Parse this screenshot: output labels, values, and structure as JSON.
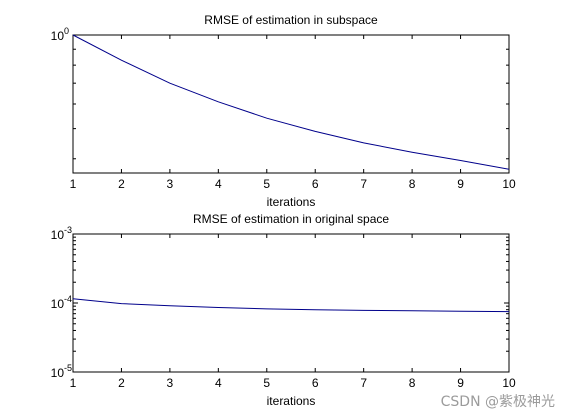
{
  "chart_data": [
    {
      "type": "line",
      "title": "RMSE of estimation in subspace",
      "xlabel": "iterations",
      "ylabel": "",
      "xlim": [
        1,
        10
      ],
      "x": [
        1,
        2,
        3,
        4,
        5,
        6,
        7,
        8,
        9,
        10
      ],
      "xticks": [
        "1",
        "2",
        "3",
        "4",
        "5",
        "6",
        "7",
        "8",
        "9",
        "10"
      ],
      "yscale": "log",
      "ylim": [
        0.36,
        1.0
      ],
      "ytick_labels": [
        {
          "base": "10",
          "exp": "0",
          "value": 1
        }
      ],
      "series": [
        {
          "color": "#00008b",
          "values": [
            1.0,
            0.83,
            0.7,
            0.61,
            0.54,
            0.49,
            0.45,
            0.42,
            0.395,
            0.37
          ]
        }
      ],
      "grid": false,
      "legend": "none"
    },
    {
      "type": "line",
      "title": "RMSE of estimation in original space",
      "xlabel": "iterations",
      "ylabel": "",
      "xlim": [
        1,
        10
      ],
      "x": [
        1,
        2,
        3,
        4,
        5,
        6,
        7,
        8,
        9,
        10
      ],
      "xticks": [
        "1",
        "2",
        "3",
        "4",
        "5",
        "6",
        "7",
        "8",
        "9",
        "10"
      ],
      "yscale": "log",
      "ylim": [
        1e-05,
        0.001
      ],
      "ytick_labels": [
        {
          "base": "10",
          "exp": "-3",
          "value": 0.001
        },
        {
          "base": "10",
          "exp": "-4",
          "value": 0.0001
        },
        {
          "base": "10",
          "exp": "-5",
          "value": 1e-05
        }
      ],
      "series": [
        {
          "color": "#00008b",
          "values": [
            0.000115,
            9.8e-05,
            9.1e-05,
            8.6e-05,
            8.2e-05,
            8e-05,
            7.8e-05,
            7.7e-05,
            7.6e-05,
            7.5e-05
          ]
        }
      ],
      "grid": false,
      "legend": "none"
    }
  ],
  "watermark": "CSDN @紫极神光"
}
